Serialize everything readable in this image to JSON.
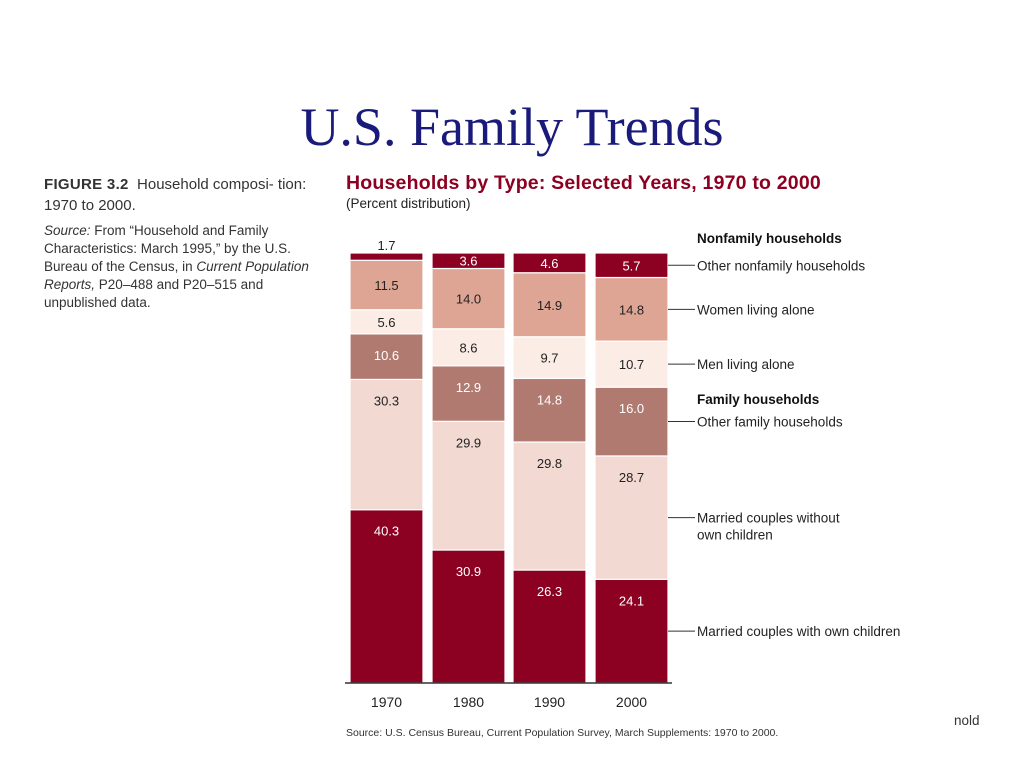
{
  "slide": {
    "title": "U.S. Family Trends"
  },
  "caption": {
    "figure_label": "FIGURE 3.2",
    "figure_text": "Household composi- tion: 1970 to 2000.",
    "source_label": "Source:",
    "source_text_1": "From “Household and Family Characteristics: March 1995,” by the U.S. Bureau of the Census, in",
    "source_italic": "Current Population Reports,",
    "source_text_2": "P20–488 and P20–515 and unpublished data."
  },
  "stray_text": "nold",
  "chart_data": {
    "type": "bar",
    "stacked": true,
    "title": "Households by Type: Selected Years, 1970 to 2000",
    "subtitle": "(Percent distribution)",
    "source": "Source: U.S. Census Bureau, Current Population Survey, March Supplements: 1970 to 2000.",
    "categories": [
      "1970",
      "1980",
      "1990",
      "2000"
    ],
    "ylim": [
      0,
      100
    ],
    "group_labels": [
      "Nonfamily households",
      "Family households"
    ],
    "series": [
      {
        "name": "Married couples with own children",
        "values": [
          40.3,
          30.9,
          26.3,
          24.1
        ],
        "color": "#8c0022",
        "label_color": "#ffffff"
      },
      {
        "name": "Married couples without own children",
        "values": [
          30.3,
          29.9,
          29.8,
          28.7
        ],
        "color": "#f2d9d2",
        "label_color": "#222222"
      },
      {
        "name": "Other family households",
        "values": [
          10.6,
          12.9,
          14.8,
          16.0
        ],
        "color": "#b07a70",
        "label_color": "#ffffff"
      },
      {
        "name": "Men living alone",
        "values": [
          5.6,
          8.6,
          9.7,
          10.7
        ],
        "color": "#fbece6",
        "label_color": "#222222"
      },
      {
        "name": "Women living alone",
        "values": [
          11.5,
          14.0,
          14.9,
          14.8
        ],
        "color": "#dfa594",
        "label_color": "#222222"
      },
      {
        "name": "Other nonfamily households",
        "values": [
          1.7,
          3.6,
          4.6,
          5.7
        ],
        "color": "#8c0022",
        "label_color": "#ffffff"
      }
    ],
    "legend_position": "right",
    "grid": false
  }
}
